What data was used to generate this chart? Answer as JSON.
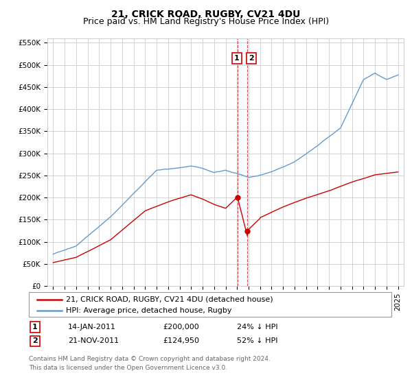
{
  "title": "21, CRICK ROAD, RUGBY, CV21 4DU",
  "subtitle": "Price paid vs. HM Land Registry's House Price Index (HPI)",
  "ylim": [
    0,
    560000
  ],
  "yticks": [
    0,
    50000,
    100000,
    150000,
    200000,
    250000,
    300000,
    350000,
    400000,
    450000,
    500000,
    550000
  ],
  "ytick_labels": [
    "£0",
    "£50K",
    "£100K",
    "£150K",
    "£200K",
    "£250K",
    "£300K",
    "£350K",
    "£400K",
    "£450K",
    "£500K",
    "£550K"
  ],
  "legend_entries": [
    "21, CRICK ROAD, RUGBY, CV21 4DU (detached house)",
    "HPI: Average price, detached house, Rugby"
  ],
  "red_line_color": "#cc0000",
  "blue_line_color": "#6699cc",
  "annotation1_date": "14-JAN-2011",
  "annotation1_price": 200000,
  "annotation1_hpi": "24% ↓ HPI",
  "annotation2_date": "21-NOV-2011",
  "annotation2_price": 124950,
  "annotation2_hpi": "52% ↓ HPI",
  "footnote1": "Contains HM Land Registry data © Crown copyright and database right 2024.",
  "footnote2": "This data is licensed under the Open Government Licence v3.0.",
  "background_color": "#ffffff",
  "grid_color": "#cccccc",
  "title_fontsize": 10,
  "subtitle_fontsize": 9,
  "tick_fontsize": 7.5,
  "legend_fontsize": 8,
  "annotation_fontsize": 8,
  "footnote_fontsize": 6.5
}
